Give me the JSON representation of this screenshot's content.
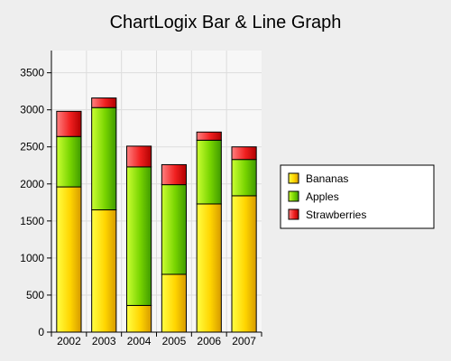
{
  "chart_data": {
    "type": "bar",
    "stacked": true,
    "title": "ChartLogix Bar & Line Graph",
    "xlabel": "",
    "ylabel": "",
    "categories": [
      "2002",
      "2003",
      "2004",
      "2005",
      "2006",
      "2007"
    ],
    "series": [
      {
        "name": "Bananas",
        "values": [
          1960,
          1650,
          360,
          780,
          1730,
          1840
        ],
        "color": "#f2d000"
      },
      {
        "name": "Apples",
        "values": [
          680,
          1380,
          1870,
          1210,
          860,
          490
        ],
        "color": "#66cc00"
      },
      {
        "name": "Strawberries",
        "values": [
          340,
          130,
          280,
          270,
          110,
          170
        ],
        "color": "#ee2222"
      }
    ],
    "ylim": [
      0,
      3800
    ],
    "yticks": [
      0,
      500,
      1000,
      1500,
      2000,
      2500,
      3000,
      3500
    ],
    "grid": true,
    "legend": "right"
  }
}
